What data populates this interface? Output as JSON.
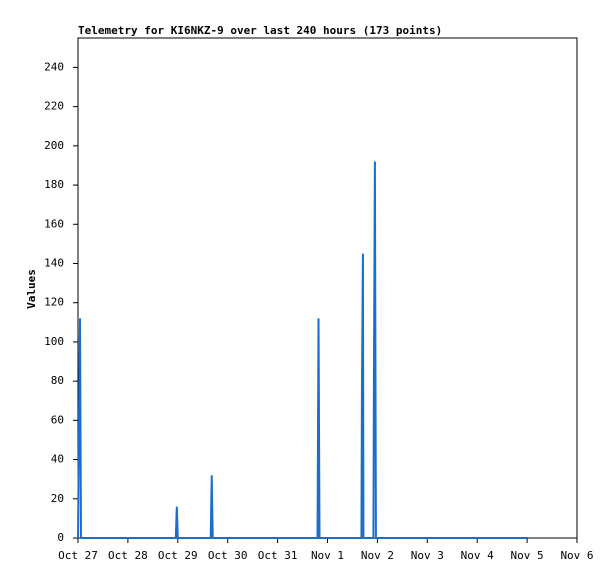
{
  "chart_data": {
    "type": "line",
    "title": "Telemetry for KI6NKZ-9 over last 240 hours (173 points)",
    "y_label": "Values",
    "x": [
      0,
      0.04,
      0.06,
      1.96,
      1.98,
      2.0,
      2.66,
      2.68,
      2.7,
      4.8,
      4.82,
      4.84,
      5.68,
      5.69,
      5.71,
      5.72,
      5.92,
      5.93,
      5.95,
      5.96,
      5.97,
      9.0
    ],
    "series": [
      {
        "color": "#1a6ecc",
        "values": [
          0,
          112,
          0,
          0,
          16,
          0,
          0,
          32,
          0,
          0,
          112,
          0,
          0,
          73,
          145,
          0,
          0,
          80,
          192,
          97,
          0,
          0
        ]
      }
    ],
    "xlim": [
      0,
      10
    ],
    "xticks": [
      {
        "value": 0,
        "label": "Oct 27"
      },
      {
        "value": 1,
        "label": "Oct 28"
      },
      {
        "value": 2,
        "label": "Oct 29"
      },
      {
        "value": 3,
        "label": "Oct 30"
      },
      {
        "value": 4,
        "label": "Oct 31"
      },
      {
        "value": 5,
        "label": "Nov 1"
      },
      {
        "value": 6,
        "label": "Nov 2"
      },
      {
        "value": 7,
        "label": "Nov 3"
      },
      {
        "value": 8,
        "label": "Nov 4"
      },
      {
        "value": 9,
        "label": "Nov 5"
      },
      {
        "value": 10,
        "label": "Nov 6"
      }
    ],
    "ylim": [
      0,
      255
    ],
    "yticks": [
      0,
      20,
      40,
      60,
      80,
      100,
      120,
      140,
      160,
      180,
      200,
      220,
      240
    ],
    "grid": false
  }
}
